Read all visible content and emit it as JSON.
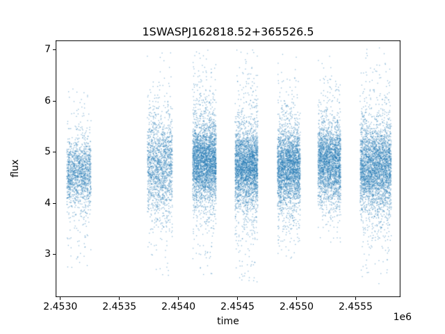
{
  "chart_data": {
    "type": "scatter",
    "title": "1SWASPJ162818.52+365526.5",
    "xlabel": "time",
    "ylabel": "flux",
    "x_offset_label": "1e6",
    "xlim": [
      2452960,
      2455880
    ],
    "ylim": [
      2.17,
      7.19
    ],
    "xticks": [
      2453000,
      2453500,
      2454000,
      2454500,
      2455000,
      2455500
    ],
    "xtick_labels": [
      "2.4530",
      "2.4535",
      "2.4540",
      "2.4545",
      "2.4550",
      "2.4555"
    ],
    "yticks": [
      3,
      4,
      5,
      6,
      7
    ],
    "ytick_labels": [
      "3",
      "4",
      "5",
      "6",
      "7"
    ],
    "grid": false,
    "legend": null,
    "marker_color": "#1f77b4",
    "marker_alpha": 0.5,
    "marker_size_px": 1.3,
    "clusters": [
      {
        "name": "season-1",
        "x_center": 2453157,
        "x_halfwidth": 103,
        "y_center": 4.6,
        "y_sigma_core": 0.33,
        "y_sigma_tail": 0.85,
        "tail_frac": 0.18,
        "y_min": 2.6,
        "y_max": 6.9,
        "n": 1500
      },
      {
        "name": "season-2",
        "x_center": 2453843,
        "x_halfwidth": 106,
        "y_center": 4.75,
        "y_sigma_core": 0.45,
        "y_sigma_tail": 1.0,
        "tail_frac": 0.25,
        "y_min": 2.45,
        "y_max": 6.95,
        "n": 1700
      },
      {
        "name": "season-3",
        "x_center": 2454220,
        "x_halfwidth": 100,
        "y_center": 4.8,
        "y_sigma_core": 0.36,
        "y_sigma_tail": 0.95,
        "tail_frac": 0.2,
        "y_min": 2.55,
        "y_max": 7.0,
        "n": 3200
      },
      {
        "name": "season-4",
        "x_center": 2454576,
        "x_halfwidth": 97,
        "y_center": 4.7,
        "y_sigma_core": 0.36,
        "y_sigma_tail": 1.0,
        "tail_frac": 0.2,
        "y_min": 2.4,
        "y_max": 7.05,
        "n": 3000
      },
      {
        "name": "season-5",
        "x_center": 2454935,
        "x_halfwidth": 97,
        "y_center": 4.7,
        "y_sigma_core": 0.36,
        "y_sigma_tail": 0.9,
        "tail_frac": 0.2,
        "y_min": 2.9,
        "y_max": 6.95,
        "n": 2800
      },
      {
        "name": "season-6",
        "x_center": 2455277,
        "x_halfwidth": 97,
        "y_center": 4.8,
        "y_sigma_core": 0.36,
        "y_sigma_tail": 0.9,
        "tail_frac": 0.18,
        "y_min": 3.2,
        "y_max": 6.95,
        "n": 2600
      },
      {
        "name": "season-7",
        "x_center": 2455670,
        "x_halfwidth": 132,
        "y_center": 4.7,
        "y_sigma_core": 0.4,
        "y_sigma_tail": 1.0,
        "tail_frac": 0.22,
        "y_min": 2.4,
        "y_max": 7.05,
        "n": 3400
      }
    ]
  }
}
